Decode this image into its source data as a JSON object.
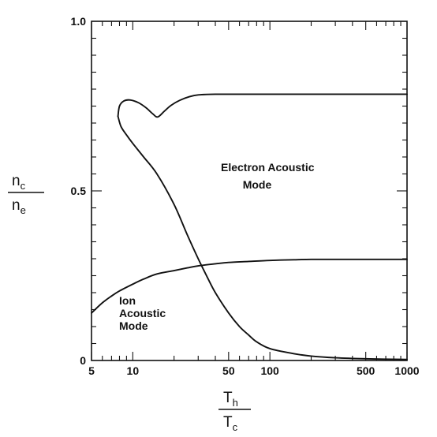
{
  "chart_data": {
    "type": "line",
    "x_scale": "log",
    "xlim": [
      5,
      1000
    ],
    "ylim": [
      0,
      1.0
    ],
    "x_ticks": [
      5,
      10,
      50,
      100,
      500,
      1000
    ],
    "x_tick_labels": [
      "5",
      "10",
      "50",
      "100",
      "500",
      "1000"
    ],
    "y_ticks": [
      0,
      0.5,
      1.0
    ],
    "y_tick_labels": [
      "0",
      "0.5",
      "1.0"
    ],
    "xlabel": {
      "top": "T",
      "top_sub": "h",
      "bottom": "T",
      "bottom_sub": "c"
    },
    "ylabel": {
      "top": "n",
      "top_sub": "c",
      "bottom": "n",
      "bottom_sub": "e"
    },
    "grid": false,
    "annotations": [
      {
        "lines": [
          "Electron Acoustic",
          "Mode"
        ]
      },
      {
        "lines": [
          "Ion",
          "Acoustic",
          "Mode"
        ]
      }
    ],
    "series": [
      {
        "points": [
          [
            5,
            0.14
          ],
          [
            6,
            0.17
          ],
          [
            7,
            0.19
          ],
          [
            8,
            0.205
          ],
          [
            10,
            0.225
          ],
          [
            12,
            0.24
          ],
          [
            15,
            0.255
          ],
          [
            20,
            0.265
          ],
          [
            25,
            0.273
          ],
          [
            30,
            0.279
          ],
          [
            40,
            0.285
          ],
          [
            50,
            0.289
          ],
          [
            70,
            0.292
          ],
          [
            100,
            0.295
          ],
          [
            150,
            0.297
          ],
          [
            200,
            0.298
          ],
          [
            300,
            0.298
          ],
          [
            500,
            0.298
          ],
          [
            1000,
            0.298
          ]
        ]
      },
      {
        "points": [
          [
            7.8,
            0.72
          ],
          [
            8.0,
            0.75
          ],
          [
            8.6,
            0.765
          ],
          [
            9.6,
            0.768
          ],
          [
            11,
            0.76
          ],
          [
            12.5,
            0.745
          ],
          [
            14,
            0.727
          ],
          [
            15.2,
            0.718
          ],
          [
            17,
            0.735
          ],
          [
            19,
            0.752
          ],
          [
            22,
            0.767
          ],
          [
            26,
            0.778
          ],
          [
            30,
            0.783
          ],
          [
            40,
            0.785
          ],
          [
            60,
            0.785
          ],
          [
            100,
            0.785
          ],
          [
            1000,
            0.785
          ]
        ]
      },
      {
        "points": [
          [
            7.8,
            0.72
          ],
          [
            8.2,
            0.69
          ],
          [
            9,
            0.665
          ],
          [
            10,
            0.64
          ],
          [
            12,
            0.6
          ],
          [
            15,
            0.55
          ],
          [
            20,
            0.46
          ],
          [
            25,
            0.37
          ],
          [
            30,
            0.3
          ],
          [
            35,
            0.245
          ],
          [
            40,
            0.2
          ],
          [
            50,
            0.14
          ],
          [
            60,
            0.1
          ],
          [
            70,
            0.075
          ],
          [
            80,
            0.055
          ],
          [
            100,
            0.035
          ],
          [
            150,
            0.02
          ],
          [
            200,
            0.013
          ],
          [
            300,
            0.008
          ],
          [
            500,
            0.005
          ],
          [
            1000,
            0.003
          ]
        ]
      }
    ]
  }
}
